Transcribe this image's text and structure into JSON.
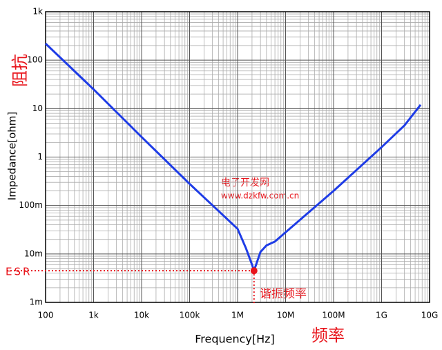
{
  "chart_data": {
    "type": "line",
    "x_label": "Frequency[Hz]",
    "y_label": "Impedance[ohm]",
    "x_label_cn": "频率",
    "y_label_cn": "阻抗",
    "watermark": [
      "电子开发网",
      "www.dzkfw.com.cn"
    ],
    "annotations": {
      "esr": "ESR",
      "resonance": "谐振频率"
    },
    "log_x": true,
    "log_y": true,
    "grid": true,
    "xlim": [
      100,
      10000000000
    ],
    "ylim": [
      0.001,
      1000
    ],
    "xticks": [
      100,
      {
        "value": 1000,
        "label": "1k"
      },
      {
        "value": 10000,
        "label": "10k"
      },
      {
        "value": 100000,
        "label": "100k"
      },
      {
        "value": 1000000,
        "label": "1M"
      },
      {
        "value": 10000000,
        "label": "10M"
      },
      {
        "value": 100000000,
        "label": "100M"
      },
      {
        "value": 1000000000,
        "label": "1G"
      },
      {
        "value": 10000000000,
        "label": "10G"
      }
    ],
    "yticks": [
      {
        "value": 0.001,
        "label": "1m"
      },
      {
        "value": 0.01,
        "label": "10m"
      },
      {
        "value": 0.1,
        "label": "100m"
      },
      1,
      10,
      100,
      {
        "value": 1000,
        "label": "1k"
      }
    ],
    "series": [
      {
        "color": "#1e3ce6",
        "x": [
          100,
          1000,
          10000,
          100000,
          1000000,
          1500000,
          2000000,
          2200000,
          3000000,
          4000000,
          6000000,
          10000000,
          100000000,
          1000000000,
          3000000000,
          6500000000
        ],
        "values": [
          220,
          25,
          2.6,
          0.28,
          0.033,
          0.013,
          0.006,
          0.0045,
          0.011,
          0.015,
          0.018,
          0.028,
          0.2,
          1.6,
          4.5,
          12
        ]
      }
    ]
  }
}
